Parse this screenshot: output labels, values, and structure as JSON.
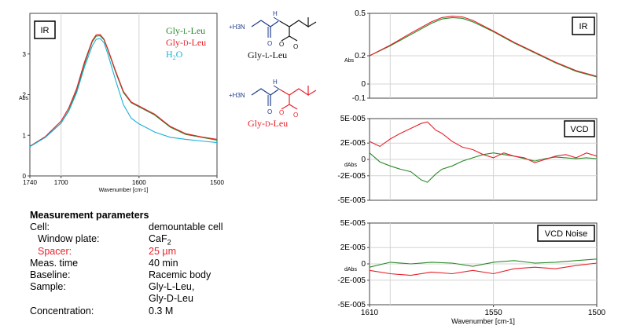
{
  "chart_data": [
    {
      "type": "line",
      "box_label": "IR",
      "xlabel": "Wavenumber [cm-1]",
      "ylabel": "Abs",
      "xlim": [
        1740,
        1500
      ],
      "ylim": [
        0,
        4
      ],
      "xticks": [
        "1740",
        "1700",
        "1600",
        "1500"
      ],
      "yticks": [
        "0",
        "1",
        "2",
        "3"
      ],
      "series": [
        {
          "name": "Gly-L-Leu",
          "color": "#2a8a2a",
          "x": [
            1740,
            1720,
            1700,
            1690,
            1680,
            1670,
            1660,
            1655,
            1650,
            1645,
            1640,
            1630,
            1620,
            1610,
            1600,
            1590,
            1580,
            1560,
            1540,
            1520,
            1500
          ],
          "y": [
            0.72,
            0.95,
            1.3,
            1.62,
            2.1,
            2.75,
            3.3,
            3.44,
            3.45,
            3.35,
            3.1,
            2.55,
            2.05,
            1.8,
            1.7,
            1.6,
            1.5,
            1.2,
            1.02,
            0.95,
            0.88
          ]
        },
        {
          "name": "Gly-D-Leu",
          "color": "#e8202a",
          "x": [
            1740,
            1720,
            1700,
            1690,
            1680,
            1670,
            1660,
            1655,
            1650,
            1645,
            1640,
            1630,
            1620,
            1610,
            1600,
            1590,
            1580,
            1560,
            1540,
            1520,
            1500
          ],
          "y": [
            0.73,
            0.97,
            1.35,
            1.68,
            2.15,
            2.8,
            3.33,
            3.47,
            3.48,
            3.37,
            3.12,
            2.58,
            2.08,
            1.82,
            1.72,
            1.62,
            1.52,
            1.22,
            1.04,
            0.96,
            0.9
          ]
        },
        {
          "name": "H2O",
          "color": "#1ab0d8",
          "x": [
            1740,
            1720,
            1700,
            1690,
            1680,
            1670,
            1660,
            1655,
            1650,
            1645,
            1640,
            1630,
            1620,
            1610,
            1600,
            1590,
            1580,
            1560,
            1540,
            1520,
            1500
          ],
          "y": [
            0.72,
            0.95,
            1.3,
            1.6,
            2.05,
            2.68,
            3.2,
            3.36,
            3.38,
            3.28,
            3.0,
            2.35,
            1.75,
            1.42,
            1.28,
            1.18,
            1.08,
            0.95,
            0.9,
            0.86,
            0.82
          ]
        }
      ],
      "legend": [
        {
          "text": "Gly-",
          "small": "L",
          "suffix": "-Leu",
          "color": "#2a8a2a"
        },
        {
          "text": "Gly-",
          "small": "D",
          "suffix": "-Leu",
          "color": "#e8202a"
        },
        {
          "text": "H",
          "sub": "2",
          "suffix": "O",
          "color": "#1ab0d8"
        }
      ]
    },
    {
      "type": "line",
      "box_label": "IR",
      "xlabel": "",
      "ylabel": "Abs",
      "xlim": [
        1610,
        1500
      ],
      "ylim": [
        -0.1,
        0.5
      ],
      "yticks": [
        "0.5",
        "0.2",
        "0",
        "-0.1"
      ],
      "series": [
        {
          "name": "Gly-L-Leu",
          "color": "#2a8a2a",
          "x": [
            1610,
            1600,
            1590,
            1580,
            1575,
            1570,
            1565,
            1560,
            1550,
            1540,
            1530,
            1520,
            1510,
            1500
          ],
          "y": [
            0.2,
            0.27,
            0.35,
            0.43,
            0.46,
            0.47,
            0.465,
            0.44,
            0.37,
            0.29,
            0.22,
            0.15,
            0.09,
            0.05
          ]
        },
        {
          "name": "Gly-D-Leu",
          "color": "#e8202a",
          "x": [
            1610,
            1600,
            1590,
            1580,
            1575,
            1570,
            1565,
            1560,
            1550,
            1540,
            1530,
            1520,
            1510,
            1500
          ],
          "y": [
            0.2,
            0.275,
            0.36,
            0.44,
            0.47,
            0.48,
            0.475,
            0.45,
            0.375,
            0.295,
            0.225,
            0.155,
            0.095,
            0.055
          ]
        }
      ]
    },
    {
      "type": "line",
      "box_label": "VCD",
      "xlabel": "",
      "ylabel": "dAbs",
      "xlim": [
        1610,
        1500
      ],
      "ylim": [
        -5e-05,
        5e-05
      ],
      "yticks": [
        "5E-005",
        "2E-005",
        "0",
        "-2E-005",
        "-5E-005"
      ],
      "series": [
        {
          "name": "Gly-L-Leu",
          "color": "#2a8a2a",
          "x": [
            1610,
            1605,
            1600,
            1595,
            1590,
            1585,
            1582,
            1578,
            1575,
            1570,
            1565,
            1560,
            1555,
            1550,
            1545,
            1540,
            1535,
            1530,
            1525,
            1520,
            1515,
            1510,
            1505,
            1500
          ],
          "y": [
            8e-06,
            -3e-06,
            -8e-06,
            -1.2e-05,
            -1.5e-05,
            -2.5e-05,
            -2.8e-05,
            -1.8e-05,
            -1.2e-05,
            -8e-06,
            -2e-06,
            2e-06,
            6e-06,
            8e-06,
            6e-06,
            4e-06,
            1e-06,
            -2e-06,
            1e-06,
            3e-06,
            2e-06,
            1e-06,
            2e-06,
            1e-06
          ]
        },
        {
          "name": "Gly-D-Leu",
          "color": "#e8202a",
          "x": [
            1610,
            1605,
            1600,
            1595,
            1590,
            1585,
            1582,
            1578,
            1575,
            1570,
            1565,
            1560,
            1555,
            1550,
            1545,
            1540,
            1535,
            1530,
            1525,
            1520,
            1515,
            1510,
            1505,
            1500
          ],
          "y": [
            2.2e-05,
            1.6e-05,
            2.5e-05,
            3.2e-05,
            3.8e-05,
            4.4e-05,
            4.6e-05,
            3.6e-05,
            3.2e-05,
            2.2e-05,
            1.5e-05,
            1.2e-05,
            6e-06,
            2e-06,
            8e-06,
            4e-06,
            2e-06,
            -4e-06,
            0.0,
            4e-06,
            6e-06,
            2e-06,
            8e-06,
            4e-06
          ]
        }
      ]
    },
    {
      "type": "line",
      "box_label": "VCD Noise",
      "xlabel": "Wavenumber [cm-1]",
      "ylabel": "dAbs",
      "xlim": [
        1610,
        1500
      ],
      "ylim": [
        -5e-05,
        5e-05
      ],
      "xticks": [
        "1610",
        "1550",
        "1500"
      ],
      "yticks": [
        "5E-005",
        "2E-005",
        "0",
        "-2E-005",
        "-5E-005"
      ],
      "series": [
        {
          "name": "Gly-L-Leu",
          "color": "#2a8a2a",
          "x": [
            1610,
            1600,
            1590,
            1580,
            1570,
            1560,
            1550,
            1540,
            1530,
            1520,
            1510,
            1500
          ],
          "y": [
            -4e-06,
            2e-06,
            0.0,
            2e-06,
            1e-06,
            -3e-06,
            2e-06,
            4e-06,
            1e-06,
            2e-06,
            4e-06,
            6e-06
          ]
        },
        {
          "name": "Gly-D-Leu",
          "color": "#e8202a",
          "x": [
            1610,
            1600,
            1590,
            1580,
            1570,
            1560,
            1550,
            1540,
            1530,
            1520,
            1510,
            1500
          ],
          "y": [
            -8e-06,
            -1.2e-05,
            -1.4e-05,
            -1e-05,
            -1.2e-05,
            -8e-06,
            -1.2e-05,
            -6e-06,
            -4e-06,
            -6e-06,
            -2e-06,
            1e-06
          ]
        }
      ]
    }
  ],
  "molecules": [
    {
      "amine": "+H3N",
      "ring_n": "H",
      "carbonyl": "O",
      "carboxylate": "O",
      "name": "Gly-",
      "name_small": "L",
      "name_suffix": "-Leu",
      "name_color": "#111111",
      "sidechain_color": "#111111"
    },
    {
      "amine": "+H3N",
      "ring_n": "H",
      "carbonyl": "O",
      "carboxylate": "O",
      "name": "Gly-",
      "name_small": "D",
      "name_suffix": "-Leu",
      "name_color": "#e8202a",
      "sidechain_color": "#e8202a"
    }
  ],
  "params": {
    "title": "Measurement parameters",
    "rows": [
      {
        "key": "Cell:",
        "value": "demountable cell",
        "indent": false,
        "red": false
      },
      {
        "key": "Window plate:",
        "value": "CaF",
        "value_sub": "2",
        "indent": true,
        "red": false
      },
      {
        "key": "Spacer:",
        "value": "25 µm",
        "indent": true,
        "red": true
      },
      {
        "key": "Meas. time",
        "value": "40 min",
        "indent": false,
        "red": false
      },
      {
        "key": "Baseline:",
        "value": "Racemic body",
        "indent": false,
        "red": false
      },
      {
        "key": "Sample:",
        "value": "Gly-L-Leu,",
        "indent": false,
        "red": false
      },
      {
        "key": "",
        "value": "Gly-D-Leu",
        "indent": false,
        "red": false
      },
      {
        "key": "Concentration:",
        "value": "0.3 M",
        "indent": false,
        "red": false
      }
    ]
  }
}
